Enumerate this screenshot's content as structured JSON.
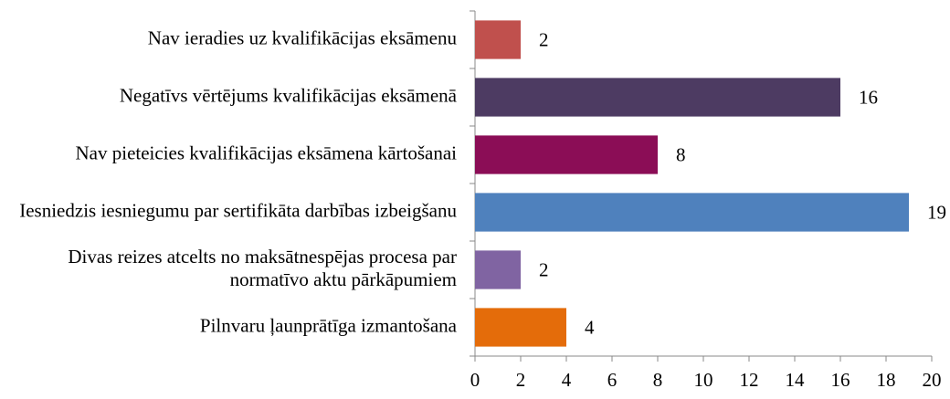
{
  "chart_data": {
    "type": "bar",
    "orientation": "horizontal",
    "categories": [
      "Nav ieradies uz kvalifikācijas eksāmenu",
      "Negatīvs vērtējums kvalifikācijas eksāmenā",
      "Nav pieteicies kvalifikācijas eksāmena kārtošanai",
      "Iesniedzis iesniegumu par sertifikāta darbības izbeigšanu",
      "Divas reizes atcelts no maksātnespējas procesa par normatīvo aktu pārkāpumiem",
      "Pilnvaru ļaunprātīga izmantošana"
    ],
    "values": [
      2,
      16,
      8,
      19,
      2,
      4
    ],
    "colors": [
      "#c0504d",
      "#4d3b62",
      "#8b0d56",
      "#4f81bd",
      "#8064a2",
      "#e46c0a"
    ],
    "xlim": [
      0,
      20
    ],
    "xticks": [
      0,
      2,
      4,
      6,
      8,
      10,
      12,
      14,
      16,
      18,
      20
    ]
  }
}
